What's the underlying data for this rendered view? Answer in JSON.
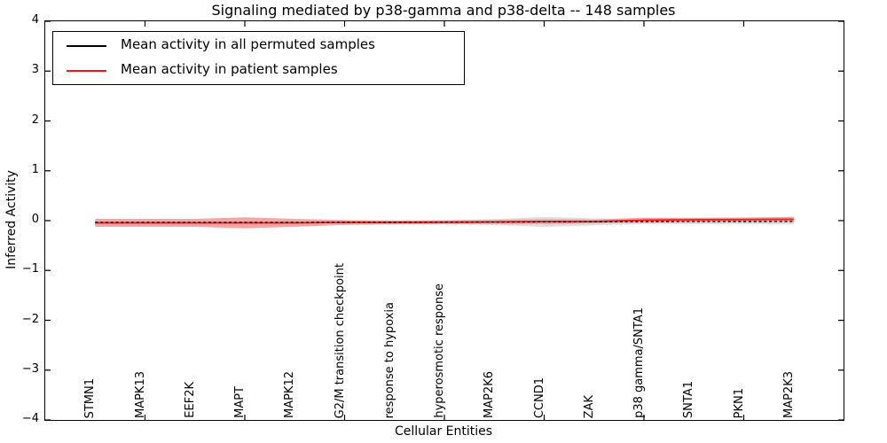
{
  "title": "Signaling mediated by p38-gamma and p38-delta -- 148 samples",
  "axes": {
    "ylabel": "Inferred Activity",
    "xlabel": "Cellular Entities",
    "yticks": [
      "4",
      "3",
      "2",
      "1",
      "0",
      "−1",
      "−2",
      "−3",
      "−4"
    ]
  },
  "chart_data": {
    "type": "line",
    "title": "Signaling mediated by p38-gamma and p38-delta -- 148 samples",
    "xlabel": "Cellular Entities",
    "ylabel": "Inferred Activity",
    "ylim": [
      -4,
      4
    ],
    "grid": false,
    "legend_position": "upper left",
    "categories": [
      "STMN1",
      "MAPK13",
      "EEF2K",
      "MAPT",
      "MAPK12",
      "G2/M transition checkpoint",
      "response to hypoxia",
      "hyperosmotic response",
      "MAP2K6",
      "CCND1",
      "ZAK",
      "p38 gamma/SNTA1",
      "SNTA1",
      "PKN1",
      "MAP2K3"
    ],
    "xtick_positions": [
      1,
      3,
      5,
      7,
      9,
      11,
      13
    ],
    "series": [
      {
        "name": "Mean activity in all permuted samples",
        "color": "#000000",
        "style": "dashed",
        "values": [
          -0.036,
          -0.036,
          -0.036,
          -0.036,
          -0.036,
          -0.033,
          -0.033,
          -0.031,
          -0.029,
          -0.027,
          -0.024,
          -0.022,
          -0.02,
          -0.019,
          -0.018
        ],
        "band_halfwidth": [
          0.05,
          0.05,
          0.05,
          0.06,
          0.05,
          0.04,
          0.04,
          0.04,
          0.06,
          0.1,
          0.07,
          0.05,
          0.05,
          0.05,
          0.06
        ],
        "band_color": "#dedede"
      },
      {
        "name": "Mean activity in patient samples",
        "color": "#ff1111",
        "style": "solid",
        "values": [
          -0.044,
          -0.044,
          -0.044,
          -0.044,
          -0.044,
          -0.036,
          -0.036,
          -0.031,
          -0.027,
          -0.018,
          -0.018,
          0.009,
          0.018,
          0.022,
          0.027
        ],
        "band_halfwidth": [
          0.08,
          0.08,
          0.08,
          0.11,
          0.08,
          0.05,
          0.04,
          0.04,
          0.04,
          0.05,
          0.04,
          0.05,
          0.04,
          0.04,
          0.05
        ],
        "band_color": "#f3a6a6"
      }
    ]
  }
}
